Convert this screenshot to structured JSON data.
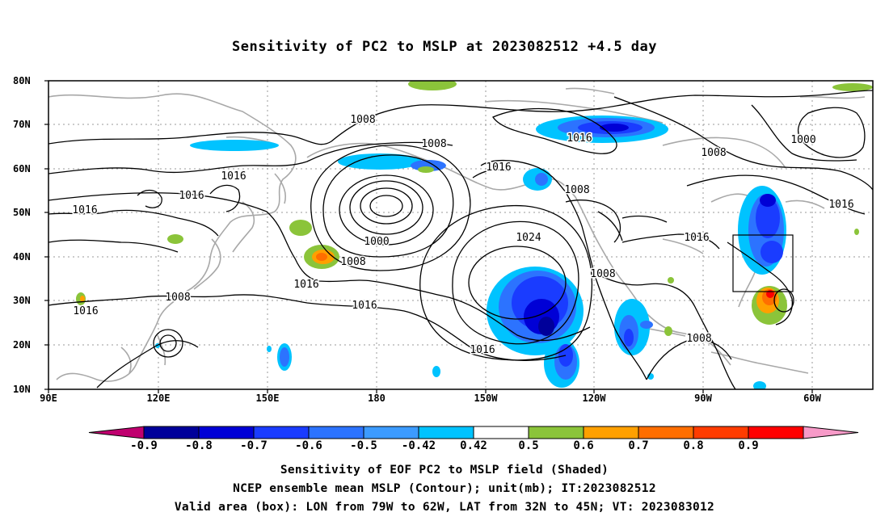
{
  "title": "Sensitivity of PC2 to MSLP at 2023082512 +4.5 day",
  "axes": {
    "lat_labels": [
      "80N",
      "70N",
      "60N",
      "50N",
      "40N",
      "30N",
      "20N",
      "10N"
    ],
    "lon_labels": [
      "90E",
      "120E",
      "150E",
      "180",
      "150W",
      "120W",
      "90W",
      "60W"
    ]
  },
  "contour_labels": [
    "1008",
    "1016",
    "1016",
    "1016",
    "1016",
    "1008",
    "1016",
    "1008",
    "1000",
    "1008",
    "1016",
    "1016",
    "1024",
    "1016",
    "1008",
    "1016",
    "1008",
    "1008",
    "1016",
    "1008",
    "1000",
    "1016",
    "1016",
    "1008"
  ],
  "colorbar": {
    "labels": [
      "-0.9",
      "-0.8",
      "-0.7",
      "-0.6",
      "-0.5",
      "-0.42",
      "0.42",
      "0.5",
      "0.6",
      "0.7",
      "0.8",
      "0.9"
    ],
    "colors": [
      "#c0006f",
      "#00009a",
      "#0000d6",
      "#1a3cff",
      "#2c73ff",
      "#3c9bff",
      "#00c3ff",
      "#ffffff",
      "#8bc43a",
      "#ffa000",
      "#ff6e00",
      "#ff3c00",
      "#ff0000",
      "#f79ac8"
    ]
  },
  "captions": [
    "Sensitivity of EOF PC2 to MSLP field (Shaded)",
    "NCEP ensemble mean MSLP (Contour); unit(mb); IT:2023082512",
    "Valid area (box): LON from 79W to 62W, LAT from 32N to 45N; VT: 2023083012"
  ],
  "valid_box": {
    "lon": [
      "79W",
      "62W"
    ],
    "lat": [
      "32N",
      "45N"
    ]
  }
}
